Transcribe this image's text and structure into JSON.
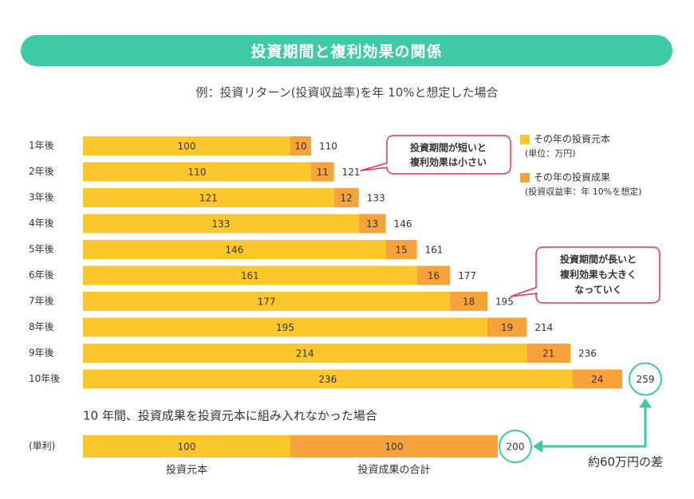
{
  "title": "投資期間と複利効果の関係",
  "subtitle": "例：投資リターン(投資収益率)を年 10%と想定した場合",
  "chart_data": [
    {
      "type": "bar",
      "orientation": "horizontal",
      "stacked": true,
      "categories": [
        "1年後",
        "2年後",
        "3年後",
        "4年後",
        "5年後",
        "6年後",
        "7年後",
        "8年後",
        "9年後",
        "10年後"
      ],
      "series": [
        {
          "name": "その年の投資元本",
          "values": [
            100,
            110,
            121,
            133,
            146,
            161,
            177,
            195,
            214,
            236
          ],
          "color": "#fcc72c"
        },
        {
          "name": "その年の投資成果",
          "values": [
            10,
            11,
            12,
            13,
            15,
            16,
            18,
            19,
            21,
            24
          ],
          "color": "#f7a23b"
        }
      ],
      "totals": [
        110,
        121,
        133,
        146,
        161,
        177,
        195,
        214,
        236,
        259
      ],
      "xlim": [
        0,
        270
      ],
      "legend": {
        "placement": "right",
        "items": [
          {
            "label": "その年の投資元本",
            "note": "(単位：万円)",
            "color": "#fcc72c"
          },
          {
            "label": "その年の投資成果",
            "note": "(投資収益率：年 10%を想定)",
            "color": "#f7a23b"
          }
        ]
      },
      "callouts": [
        {
          "lines": [
            "投資期間が短いと",
            "複利効果は小さい"
          ],
          "target": "2年後"
        },
        {
          "lines": [
            "投資期間が長いと",
            "複利効果も大きく",
            "なっていく"
          ],
          "target": "7年後"
        }
      ]
    },
    {
      "type": "bar",
      "orientation": "horizontal",
      "stacked": true,
      "title": "10 年間、投資成果を投資元本に組み入れなかった場合",
      "categories": [
        "(単利)"
      ],
      "series": [
        {
          "name": "投資元本",
          "values": [
            100
          ],
          "color": "#fcc72c"
        },
        {
          "name": "投資成果の合計",
          "values": [
            100
          ],
          "color": "#f7a23b"
        }
      ],
      "totals": [
        200
      ],
      "annotation": "約60万円の差"
    }
  ],
  "colors": {
    "accent": "#3ec9a7",
    "callout_border": "#e8344a",
    "principal": "#fcc72c",
    "gain": "#f7a23b"
  }
}
